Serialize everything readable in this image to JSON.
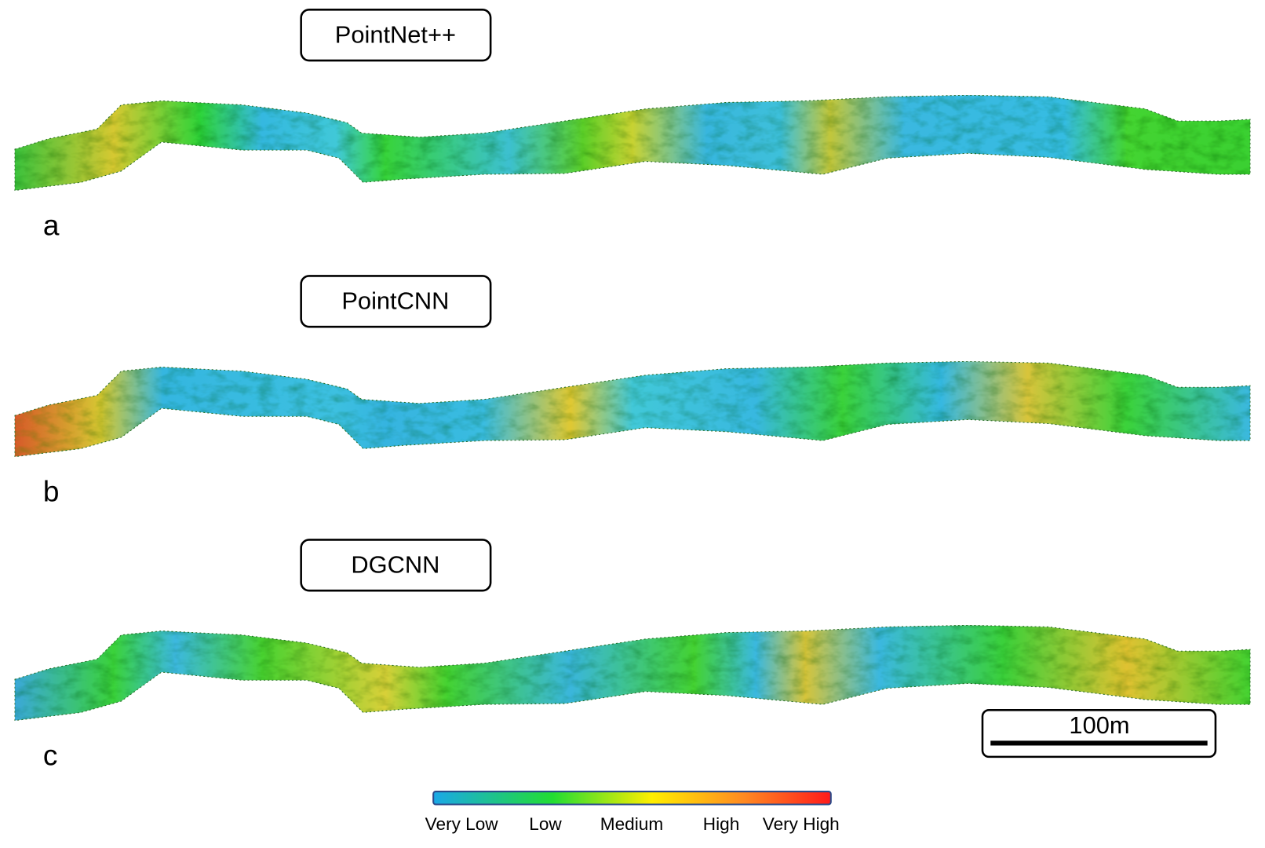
{
  "panels": [
    {
      "title": "PointNet++",
      "label": "a"
    },
    {
      "title": "PointCNN",
      "label": "b"
    },
    {
      "title": "DGCNN",
      "label": "c"
    }
  ],
  "scale_bar": "100m",
  "colorbar": {
    "labels": [
      "Very Low",
      "Low",
      "Medium",
      "High",
      "Very High"
    ]
  }
}
